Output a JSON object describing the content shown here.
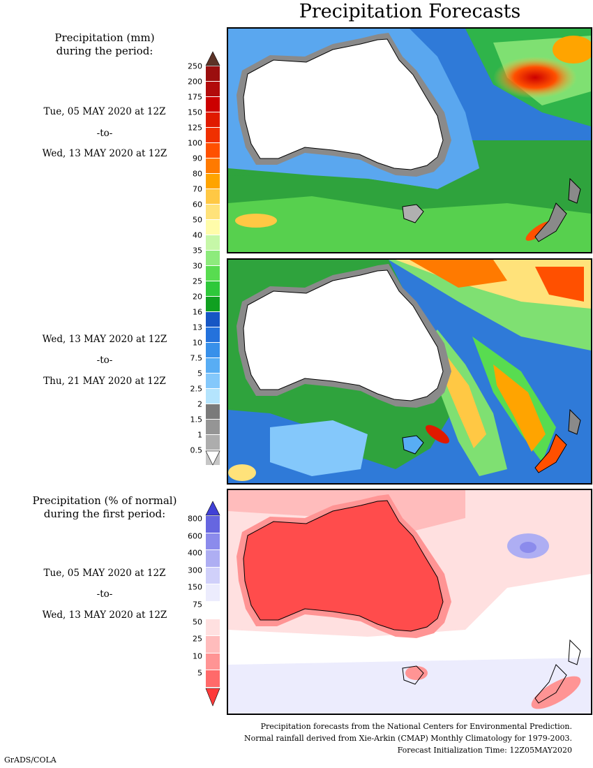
{
  "title": "Precipitation Forecasts",
  "panel1": {
    "label_line1": "Precipitation (mm)",
    "label_line2": "during the period:",
    "start": "Tue, 05 MAY 2020 at 12Z",
    "sep": "-to-",
    "end": "Wed, 13 MAY 2020 at 12Z"
  },
  "panel2": {
    "start": "Wed, 13 MAY 2020 at 12Z",
    "sep": "-to-",
    "end": "Thu, 21 MAY 2020 at 12Z"
  },
  "panel3": {
    "label_line1": "Precipitation (% of normal)",
    "label_line2": "during the first period:",
    "start": "Tue, 05 MAY 2020 at 12Z",
    "sep": "-to-",
    "end": "Wed, 13 MAY 2020 at 12Z"
  },
  "precip_scale": {
    "ticks": [
      "250",
      "200",
      "175",
      "150",
      "125",
      "100",
      "90",
      "80",
      "70",
      "60",
      "50",
      "40",
      "35",
      "30",
      "25",
      "20",
      "16",
      "13",
      "10",
      "7.5",
      "5",
      "2.5",
      "2",
      "1.5",
      "1",
      "0.5"
    ],
    "colors": [
      "#9b0e0e",
      "#b20b0b",
      "#cc0000",
      "#e01a00",
      "#f03000",
      "#ff5000",
      "#ff7a00",
      "#ffa400",
      "#ffc844",
      "#ffe27a",
      "#fffcaa",
      "#c6f7a8",
      "#8deb7c",
      "#58dc50",
      "#2ec83a",
      "#10a020",
      "#1656c4",
      "#2472dc",
      "#3890ea",
      "#58adf4",
      "#84c8fb",
      "#b4e4fd",
      "#7a7a7a",
      "#959595",
      "#adadad",
      "#c6c6c6"
    ],
    "top_arrow_color": "#5c3327",
    "bottom_arrow_color": "#ffffff"
  },
  "pct_scale": {
    "ticks": [
      "800",
      "600",
      "400",
      "300",
      "150",
      "75",
      "50",
      "25",
      "10",
      "5"
    ],
    "colors": [
      "#6666e0",
      "#8b8bec",
      "#aeaef3",
      "#d0d0fa",
      "#ececfd",
      "#ffffff",
      "#ffe0e0",
      "#ffbcbc",
      "#ff9494",
      "#ff6a6a"
    ],
    "top_arrow_color": "#4141d6",
    "bottom_arrow_color": "#ff3a3a"
  },
  "footer": {
    "line1": "Precipitation forecasts from the National Centers for Environmental Prediction.",
    "line2": "Normal rainfall derived from Xie-Arkin (CMAP) Monthly Climatology for 1979-2003.",
    "line3": "Forecast Initialization Time: 12Z05MAY2020"
  },
  "credit": "GrADS/COLA"
}
